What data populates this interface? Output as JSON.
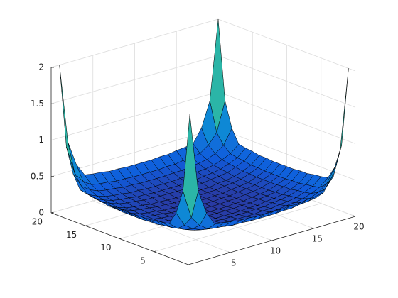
{
  "chart_data": {
    "type": "surface",
    "x": [
      1,
      2,
      3,
      4,
      5,
      6,
      7,
      8,
      9,
      10,
      11,
      12,
      13,
      14,
      15,
      16,
      17,
      18,
      19,
      20
    ],
    "y": [
      1,
      2,
      3,
      4,
      5,
      6,
      7,
      8,
      9,
      10,
      11,
      12,
      13,
      14,
      15,
      16,
      17,
      18,
      19,
      20
    ],
    "z": [
      [
        2,
        0.91,
        0.57,
        0.39,
        0.37,
        0.36,
        0.34,
        0.34,
        0.33,
        0.33,
        0.33,
        0.33,
        0.34,
        0.34,
        0.36,
        0.37,
        0.39,
        0.57,
        0.91,
        2
      ],
      [
        0.91,
        0.51,
        0.37,
        0.29,
        0.27,
        0.26,
        0.24,
        0.24,
        0.23,
        0.23,
        0.23,
        0.23,
        0.24,
        0.24,
        0.26,
        0.27,
        0.29,
        0.37,
        0.51,
        0.91
      ],
      [
        0.57,
        0.37,
        0.29,
        0.24,
        0.22,
        0.21,
        0.19,
        0.19,
        0.18,
        0.18,
        0.18,
        0.18,
        0.19,
        0.19,
        0.21,
        0.22,
        0.24,
        0.29,
        0.37,
        0.57
      ],
      [
        0.39,
        0.29,
        0.24,
        0.2,
        0.18,
        0.17,
        0.15,
        0.15,
        0.14,
        0.14,
        0.14,
        0.14,
        0.15,
        0.15,
        0.17,
        0.18,
        0.2,
        0.24,
        0.29,
        0.39
      ],
      [
        0.37,
        0.27,
        0.22,
        0.18,
        0.16,
        0.15,
        0.13,
        0.13,
        0.12,
        0.12,
        0.12,
        0.12,
        0.13,
        0.13,
        0.15,
        0.16,
        0.18,
        0.22,
        0.27,
        0.37
      ],
      [
        0.36,
        0.26,
        0.21,
        0.17,
        0.15,
        0.14,
        0.12,
        0.12,
        0.11,
        0.11,
        0.11,
        0.11,
        0.12,
        0.12,
        0.14,
        0.15,
        0.17,
        0.21,
        0.26,
        0.36
      ],
      [
        0.34,
        0.24,
        0.19,
        0.15,
        0.13,
        0.12,
        0.1,
        0.1,
        0.09,
        0.09,
        0.09,
        0.09,
        0.1,
        0.1,
        0.12,
        0.13,
        0.15,
        0.19,
        0.24,
        0.34
      ],
      [
        0.34,
        0.24,
        0.19,
        0.15,
        0.13,
        0.12,
        0.1,
        0.1,
        0.09,
        0.09,
        0.09,
        0.09,
        0.1,
        0.1,
        0.12,
        0.13,
        0.15,
        0.19,
        0.24,
        0.34
      ],
      [
        0.33,
        0.23,
        0.18,
        0.14,
        0.12,
        0.11,
        0.09,
        0.09,
        0.08,
        0.08,
        0.08,
        0.08,
        0.09,
        0.09,
        0.11,
        0.12,
        0.14,
        0.18,
        0.23,
        0.33
      ],
      [
        0.33,
        0.23,
        0.18,
        0.14,
        0.12,
        0.11,
        0.09,
        0.09,
        0.08,
        0.08,
        0.08,
        0.08,
        0.09,
        0.09,
        0.11,
        0.12,
        0.14,
        0.18,
        0.23,
        0.33
      ],
      [
        0.33,
        0.23,
        0.18,
        0.14,
        0.12,
        0.11,
        0.09,
        0.09,
        0.08,
        0.08,
        0.08,
        0.08,
        0.09,
        0.09,
        0.11,
        0.12,
        0.14,
        0.18,
        0.23,
        0.33
      ],
      [
        0.33,
        0.23,
        0.18,
        0.14,
        0.12,
        0.11,
        0.09,
        0.09,
        0.08,
        0.08,
        0.08,
        0.08,
        0.09,
        0.09,
        0.11,
        0.12,
        0.14,
        0.18,
        0.23,
        0.33
      ],
      [
        0.34,
        0.24,
        0.19,
        0.15,
        0.13,
        0.12,
        0.1,
        0.1,
        0.09,
        0.09,
        0.09,
        0.09,
        0.1,
        0.1,
        0.12,
        0.13,
        0.15,
        0.19,
        0.24,
        0.34
      ],
      [
        0.34,
        0.24,
        0.19,
        0.15,
        0.13,
        0.12,
        0.1,
        0.1,
        0.09,
        0.09,
        0.09,
        0.09,
        0.1,
        0.1,
        0.12,
        0.13,
        0.15,
        0.19,
        0.24,
        0.34
      ],
      [
        0.36,
        0.26,
        0.21,
        0.17,
        0.15,
        0.14,
        0.12,
        0.12,
        0.11,
        0.11,
        0.11,
        0.11,
        0.12,
        0.12,
        0.14,
        0.15,
        0.17,
        0.21,
        0.26,
        0.36
      ],
      [
        0.37,
        0.27,
        0.22,
        0.18,
        0.16,
        0.15,
        0.13,
        0.13,
        0.12,
        0.12,
        0.12,
        0.12,
        0.13,
        0.13,
        0.15,
        0.16,
        0.18,
        0.22,
        0.27,
        0.37
      ],
      [
        0.39,
        0.29,
        0.24,
        0.2,
        0.18,
        0.17,
        0.15,
        0.15,
        0.14,
        0.14,
        0.14,
        0.14,
        0.15,
        0.15,
        0.17,
        0.18,
        0.2,
        0.24,
        0.29,
        0.39
      ],
      [
        0.57,
        0.37,
        0.29,
        0.24,
        0.22,
        0.21,
        0.19,
        0.19,
        0.18,
        0.18,
        0.18,
        0.18,
        0.19,
        0.19,
        0.21,
        0.22,
        0.24,
        0.29,
        0.37,
        0.57
      ],
      [
        0.91,
        0.51,
        0.37,
        0.29,
        0.27,
        0.26,
        0.24,
        0.24,
        0.23,
        0.23,
        0.23,
        0.23,
        0.24,
        0.24,
        0.26,
        0.27,
        0.29,
        0.37,
        0.51,
        0.91
      ],
      [
        2,
        0.91,
        0.57,
        0.39,
        0.37,
        0.36,
        0.34,
        0.34,
        0.33,
        0.33,
        0.33,
        0.33,
        0.34,
        0.34,
        0.36,
        0.37,
        0.39,
        0.57,
        0.91,
        2
      ]
    ],
    "xlim": [
      0,
      20
    ],
    "ylim": [
      0,
      20
    ],
    "zlim": [
      0,
      2
    ],
    "xticks": [
      5,
      10,
      15,
      20
    ],
    "yticks": [
      5,
      10,
      15,
      20
    ],
    "zticks": [
      0,
      0.5,
      1,
      1.5,
      2
    ],
    "grid": true,
    "colormap": "parula",
    "clim": [
      0,
      2
    ]
  }
}
